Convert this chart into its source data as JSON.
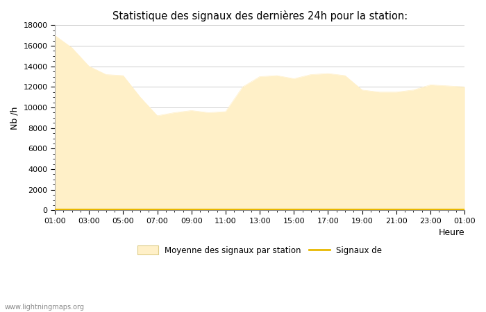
{
  "title": "Statistique des signaux des dernières 24h pour la station:",
  "xlabel": "Heure",
  "ylabel": "Nb /h",
  "watermark": "www.lightningmaps.org",
  "legend_area_label": "Moyenne des signaux par station",
  "legend_line_label": "Signaux de",
  "fill_color": "#FFF0C8",
  "line_color": "#E8B800",
  "bg_color": "#FFFFFF",
  "grid_color": "#CCCCCC",
  "ylim": [
    0,
    18000
  ],
  "ytick_majors": [
    0,
    2000,
    4000,
    6000,
    8000,
    10000,
    12000,
    14000,
    16000,
    18000
  ],
  "xtick_labels": [
    "01:00",
    "03:00",
    "05:00",
    "07:00",
    "09:00",
    "11:00",
    "13:00",
    "15:00",
    "17:00",
    "19:00",
    "21:00",
    "23:00",
    "01:00"
  ],
  "x_hours": [
    0,
    1,
    2,
    3,
    4,
    5,
    6,
    7,
    8,
    9,
    10,
    11,
    12,
    13,
    14,
    15,
    16,
    17,
    18,
    19,
    20,
    21,
    22,
    23,
    24
  ],
  "fill_values": [
    17000,
    15800,
    14000,
    13200,
    13100,
    11000,
    9200,
    9500,
    9700,
    9500,
    9600,
    12000,
    13000,
    13100,
    12800,
    13200,
    13300,
    13100,
    11700,
    11500,
    11500,
    11700,
    12200,
    12100,
    12000
  ],
  "line_values": [
    80,
    80,
    80,
    80,
    80,
    80,
    80,
    80,
    80,
    80,
    80,
    80,
    80,
    80,
    80,
    80,
    80,
    80,
    80,
    80,
    80,
    80,
    80,
    80,
    80
  ]
}
